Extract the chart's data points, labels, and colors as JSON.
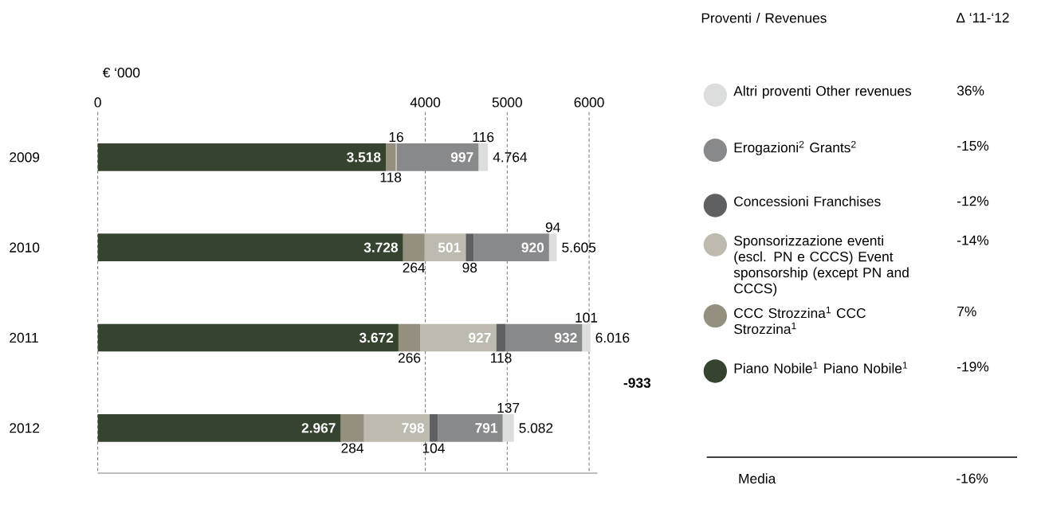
{
  "chart_data": {
    "type": "bar",
    "orientation": "horizontal",
    "stacked": true,
    "xlabel": "€ ‘000",
    "categories": [
      "2009",
      "2010",
      "2011",
      "2012"
    ],
    "xlim": [
      0,
      6100
    ],
    "xticks": [
      0,
      4000,
      5000,
      6000
    ],
    "grid": "x",
    "legend": "right",
    "legend_title": "Proventi / Revenues",
    "series": [
      {
        "name": "Piano Nobile$^{1}$ Piano Nobile$^{1}$",
        "color": "#36442f",
        "values": [
          3518,
          3728,
          3672,
          2967
        ],
        "value_labels": [
          "3.518",
          "3.728",
          "3.672",
          "2.967"
        ]
      },
      {
        "name": "CCC Strozzina$^{1}$ CCC Strozzina$^{1}$",
        "color": "#958f80",
        "values": [
          118,
          264,
          266,
          284
        ],
        "value_labels": [
          "118",
          "264",
          "266",
          "284"
        ]
      },
      {
        "name": "Sponsorizzazione eventi (escl. PN e CCCS) Event sponsorship (except PN and CCCS)",
        "color": "#bdbab0",
        "values": [
          16,
          501,
          927,
          798
        ],
        "value_labels": [
          "16",
          "501",
          "927",
          "798"
        ]
      },
      {
        "name": "Concessioni Franchises",
        "color": "#5f6062",
        "values": [
          null,
          98,
          118,
          104
        ],
        "value_labels": [
          null,
          "98",
          "118",
          "104"
        ]
      },
      {
        "name": "Erogazioni$^{2}$ Grants$^{2}$",
        "color": "#88898b",
        "values": [
          997,
          920,
          932,
          791
        ],
        "value_labels": [
          "997",
          "920",
          "932",
          "791"
        ]
      },
      {
        "name": "Altri proventi Other revenues",
        "color": "#dcdddd",
        "values": [
          116,
          94,
          101,
          137
        ],
        "value_labels": [
          "116",
          "94",
          "101",
          "137"
        ]
      }
    ],
    "totals": [
      "4.764",
      "5.605",
      "6.016",
      "5.082"
    ],
    "annotations": [
      "-933",
      "Δ ‘11-‘12",
      "36%",
      "-15%",
      "-12%",
      "-14%",
      "7%",
      "-19%",
      "Media",
      "-16%"
    ]
  }
}
